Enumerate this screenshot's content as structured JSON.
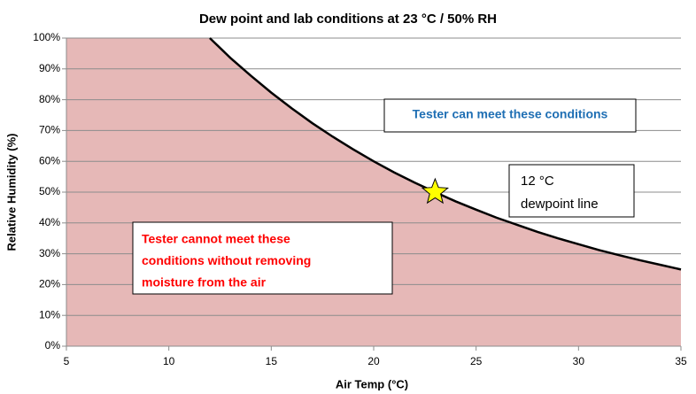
{
  "chart_data": {
    "type": "line",
    "title": "Dew point and lab conditions at 23 °C / 50% RH",
    "x_label": "Air Temp (°C)",
    "y_label": "Relative Humidity (%)",
    "series": [
      {
        "color": "#000000",
        "fill": "#e6b8b7",
        "x": [
          12,
          13,
          14,
          15,
          16,
          17,
          18,
          19,
          20,
          21,
          22,
          23,
          24,
          25,
          26,
          27,
          28,
          29,
          30,
          31,
          32,
          33,
          34,
          35
        ],
        "values": [
          100,
          93.6,
          87.8,
          82.3,
          77.2,
          72.4,
          68,
          63.9,
          60,
          56.4,
          53.1,
          50,
          47,
          44.3,
          41.7,
          39.4,
          37.1,
          35,
          33.1,
          31.2,
          29.5,
          27.9,
          26.4,
          24.9
        ]
      }
    ],
    "marker": {
      "x": 23,
      "y": 50,
      "color": "#ffff00"
    },
    "xlim": [
      5,
      35
    ],
    "xticks": [
      5,
      10,
      15,
      20,
      25,
      30,
      35
    ],
    "ylim": [
      0,
      100
    ],
    "yticks": [
      {
        "value": 0,
        "label": "0%"
      },
      {
        "value": 10,
        "label": "10%"
      },
      {
        "value": 20,
        "label": "20%"
      },
      {
        "value": 30,
        "label": "30%"
      },
      {
        "value": 40,
        "label": "40%"
      },
      {
        "value": 50,
        "label": "50%"
      },
      {
        "value": 60,
        "label": "60%"
      },
      {
        "value": 70,
        "label": "70%"
      },
      {
        "value": 80,
        "label": "80%"
      },
      {
        "value": 90,
        "label": "90%"
      },
      {
        "value": 100,
        "label": "100%"
      }
    ],
    "grid": true,
    "annotations": [
      {
        "lines": [
          "Tester can meet these conditions"
        ],
        "color": "#1f6fb4"
      },
      {
        "lines": [
          "12 °C",
          "dewpoint line"
        ],
        "color": "#000000"
      },
      {
        "lines": [
          "Tester cannot meet these",
          "conditions without removing",
          "moisture from the air"
        ],
        "color": "#ff0000"
      }
    ]
  }
}
